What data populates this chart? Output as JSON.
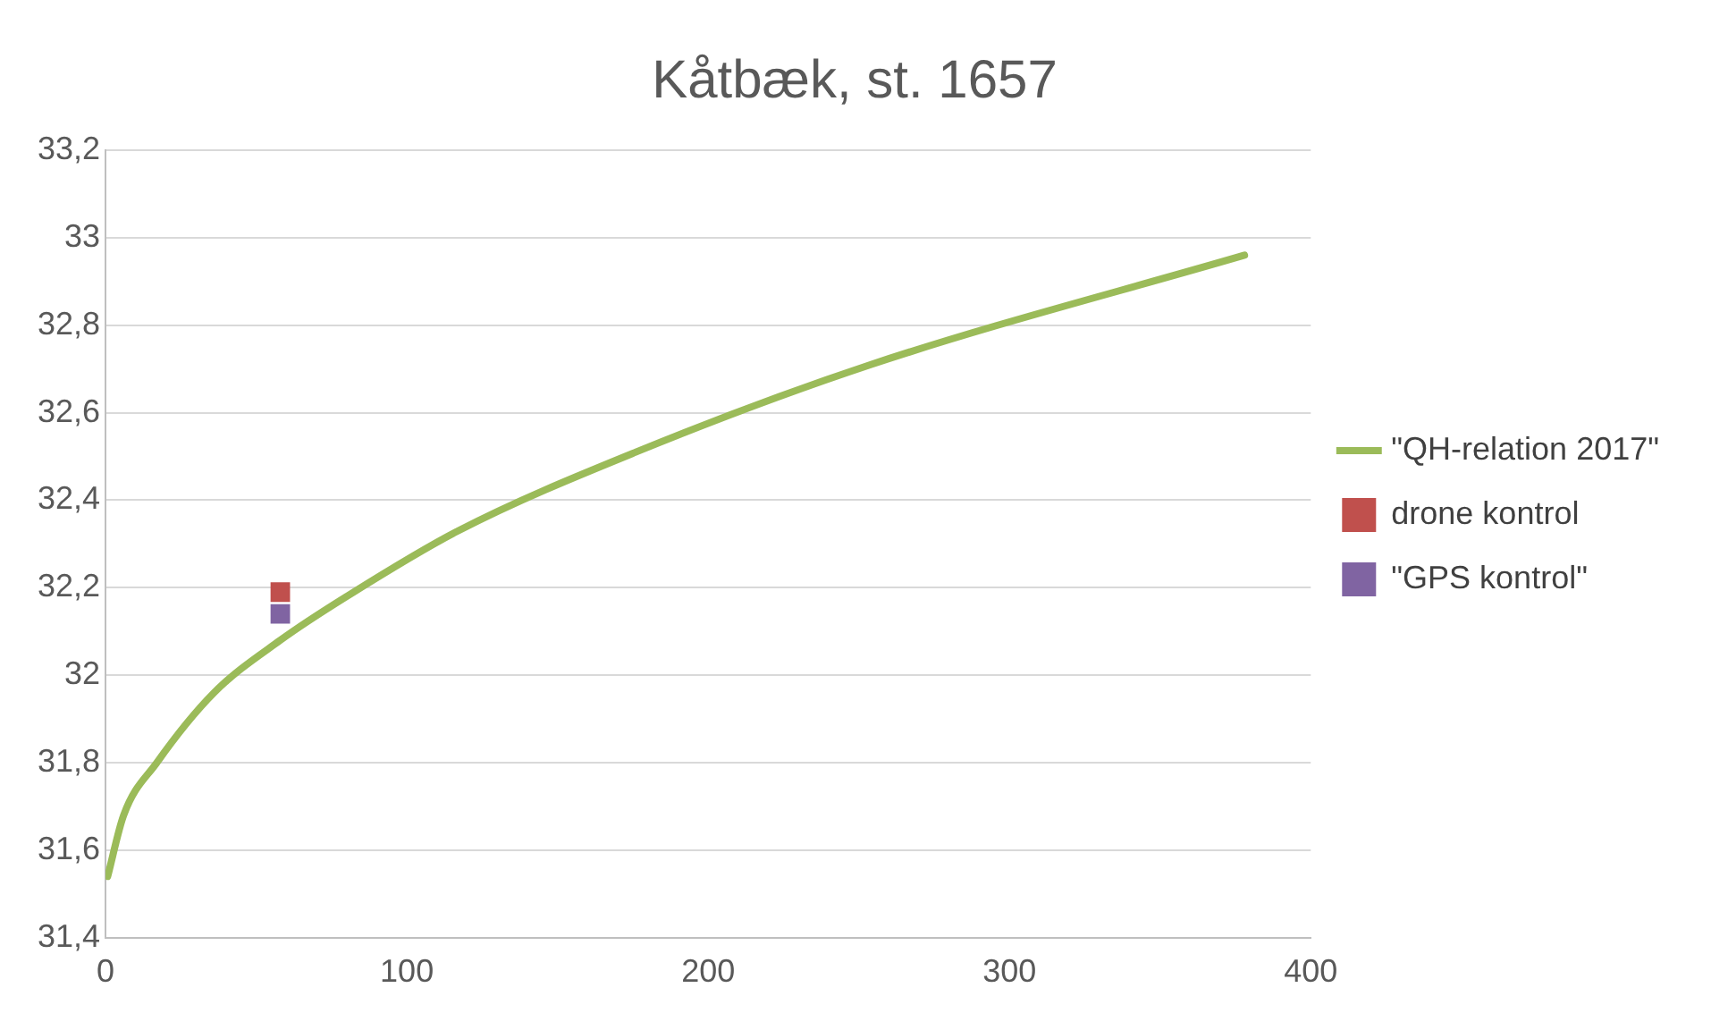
{
  "chart_data": {
    "type": "line",
    "title": "Kåtbæk, st. 1657",
    "xlim": [
      0,
      400
    ],
    "xticks": [
      0,
      100,
      200,
      300,
      400
    ],
    "ylim": [
      31.4,
      33.2
    ],
    "yticks": [
      {
        "value": 31.4,
        "label": "31,4"
      },
      {
        "value": 31.6,
        "label": "31,6"
      },
      {
        "value": 31.8,
        "label": "31,8"
      },
      {
        "value": 32,
        "label": "32"
      },
      {
        "value": 32.2,
        "label": "32,2"
      },
      {
        "value": 32.4,
        "label": "32,4"
      },
      {
        "value": 32.6,
        "label": "32,6"
      },
      {
        "value": 32.8,
        "label": "32,8"
      },
      {
        "value": 33,
        "label": "33"
      },
      {
        "value": 33.2,
        "label": "33,2"
      }
    ],
    "grid": "y",
    "legend": "right",
    "series": [
      {
        "name": "\"QH-relation 2017\"",
        "type": "line",
        "color": "#9bbb59",
        "marker": "none",
        "x": [
          0.7,
          6,
          17,
          36,
          58,
          80,
          117,
          176,
          254,
          378
        ],
        "values": [
          31.54,
          31.68,
          31.8,
          31.96,
          32.08,
          32.18,
          32.33,
          32.51,
          32.71,
          32.96
        ]
      },
      {
        "name": "drone kontrol",
        "type": "scatter",
        "color": "#c0504d",
        "marker": "square",
        "x": [
          58
        ],
        "values": [
          32.19
        ]
      },
      {
        "name": "\"GPS kontrol\"",
        "type": "scatter",
        "color": "#8064a2",
        "marker": "square",
        "x": [
          58
        ],
        "values": [
          32.14
        ]
      }
    ]
  }
}
